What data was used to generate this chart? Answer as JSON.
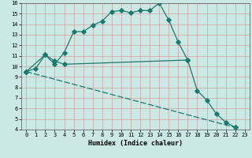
{
  "xlabel": "Humidex (Indice chaleur)",
  "bg_color": "#cce8e5",
  "grid_color": "#d09090",
  "line_color": "#1a7a6e",
  "xlim": [
    -0.5,
    23.5
  ],
  "ylim": [
    4,
    16
  ],
  "xticks": [
    0,
    1,
    2,
    3,
    4,
    5,
    6,
    7,
    8,
    9,
    10,
    11,
    12,
    13,
    14,
    15,
    16,
    17,
    18,
    19,
    20,
    21,
    22,
    23
  ],
  "yticks": [
    4,
    5,
    6,
    7,
    8,
    9,
    10,
    11,
    12,
    13,
    14,
    15,
    16
  ],
  "line1_x": [
    0,
    1,
    2,
    3,
    4,
    5,
    6,
    7,
    8,
    9,
    10,
    11,
    12,
    13,
    14,
    15,
    16,
    17
  ],
  "line1_y": [
    9.5,
    9.8,
    11.1,
    10.2,
    11.3,
    13.3,
    13.3,
    13.9,
    14.3,
    15.2,
    15.3,
    15.1,
    15.3,
    15.3,
    16.0,
    14.4,
    12.3,
    10.6
  ],
  "line2_x": [
    0,
    2,
    3,
    4,
    17,
    18,
    19,
    20,
    21,
    22
  ],
  "line2_y": [
    9.5,
    11.1,
    10.5,
    10.2,
    10.6,
    7.7,
    6.8,
    5.5,
    4.7,
    4.2
  ],
  "line3_x": [
    0,
    22
  ],
  "line3_y": [
    9.5,
    4.2
  ]
}
